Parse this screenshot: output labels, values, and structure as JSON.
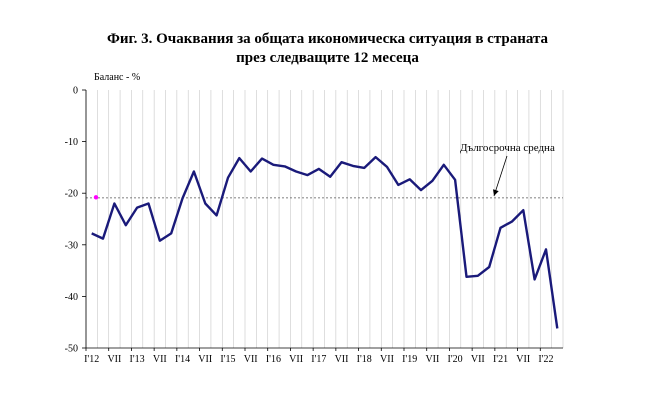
{
  "chart_data": {
    "type": "line",
    "title_line1": "Фиг. 3. Очаквания за общата икономическа ситуация в страната",
    "title_line2": "през следващите 12 месеца",
    "ylabel": "Баланс - %",
    "ylim": [
      -50,
      0
    ],
    "yticks": [
      0,
      -10,
      -20,
      -30,
      -40,
      -50
    ],
    "grid": "vertical",
    "x_labels": [
      "I'12",
      "VII",
      "I'13",
      "VII",
      "I'14",
      "VII",
      "I'15",
      "VII",
      "I'16",
      "VII",
      "I'17",
      "VII",
      "I'18",
      "VII",
      "I'19",
      "VII",
      "I'20",
      "VII",
      "I'21",
      "VII",
      "I'22"
    ],
    "series": [
      {
        "color": "#1a1a7a",
        "values": [
          -27.8,
          -28.8,
          -22,
          -26.2,
          -22.8,
          -22,
          -29.2,
          -27.8,
          -21,
          -15.8,
          -22,
          -24.3,
          -17,
          -13.2,
          -15.8,
          -13.3,
          -14.5,
          -14.8,
          -15.8,
          -16.5,
          -15.3,
          -16.8,
          -14,
          -14.7,
          -15.1,
          -13,
          -14.9,
          -18.4,
          -17.3,
          -19.4,
          -17.6,
          -14.5,
          -17.4,
          -36.2,
          -36,
          -34.3,
          -26.7,
          -25.5,
          -23.3,
          -36.7,
          -30.9,
          -46.2
        ]
      }
    ],
    "long_term_average": {
      "label": "Дългосрочна средна",
      "value": -20.9,
      "marker_color": "#ff00ff"
    }
  }
}
